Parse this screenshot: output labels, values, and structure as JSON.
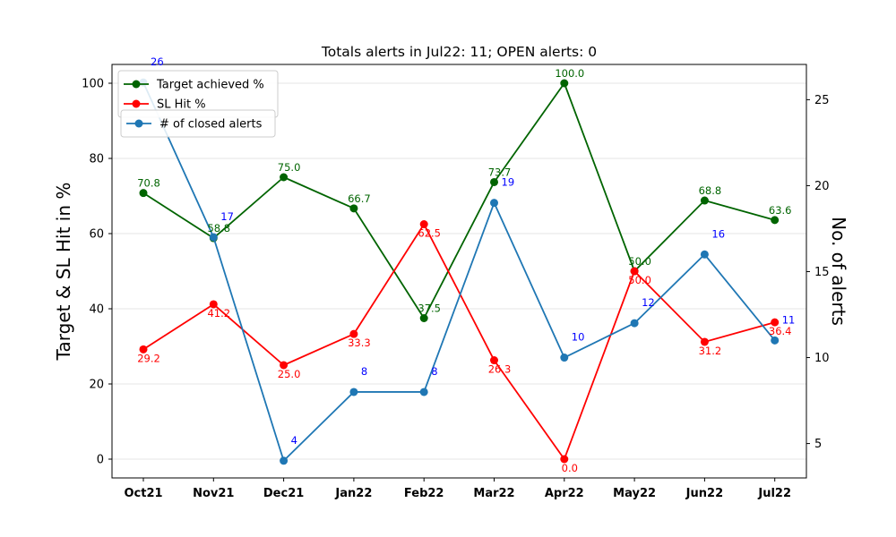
{
  "chart_data": {
    "type": "line",
    "title": "Totals alerts in Jul22: 11; OPEN alerts: 0",
    "categories": [
      "Oct21",
      "Nov21",
      "Dec21",
      "Jan22",
      "Feb22",
      "Mar22",
      "Apr22",
      "May22",
      "Jun22",
      "Jul22"
    ],
    "ylabel_left": "Target & SL Hit in %",
    "ylabel_right": "No. of alerts",
    "ylim_left": [
      -5,
      105
    ],
    "ylim_right": [
      3,
      27.05
    ],
    "yticks_left": [
      0,
      20,
      40,
      60,
      80,
      100
    ],
    "yticks_right": [
      5,
      10,
      15,
      20,
      25
    ],
    "grid": "horizontal (left axis)",
    "series": [
      {
        "name": "Target achieved %",
        "axis": "left",
        "color": "#006400",
        "values": [
          70.8,
          58.8,
          75.0,
          66.7,
          37.5,
          73.7,
          100.0,
          50.0,
          68.8,
          63.6
        ],
        "labels": [
          "70.8",
          "58.8",
          "75.0",
          "66.7",
          "37.5",
          "73.7",
          "100.0",
          "50.0",
          "68.8",
          "63.6"
        ]
      },
      {
        "name": "SL Hit %",
        "axis": "left",
        "color": "#ff0000",
        "values": [
          29.2,
          41.2,
          25.0,
          33.3,
          62.5,
          26.3,
          0.0,
          50.0,
          31.2,
          36.4
        ],
        "labels": [
          "29.2",
          "41.2",
          "25.0",
          "33.3",
          "62.5",
          "26.3",
          "0.0",
          "50.0",
          "31.2",
          "36.4"
        ]
      },
      {
        "name": "# of closed alerts",
        "axis": "right",
        "color": "#1f77b4",
        "label_color": "#0000ff",
        "values": [
          26,
          17,
          4,
          8,
          8,
          19,
          10,
          12,
          16,
          11
        ],
        "labels": [
          "26",
          "17",
          "4",
          "8",
          "8",
          "19",
          "10",
          "12",
          "16",
          "11"
        ]
      }
    ],
    "legends": [
      {
        "placement": "top-left",
        "entries": [
          "Target achieved %",
          "SL Hit %"
        ]
      },
      {
        "placement": "top-left (below)",
        "entries": [
          "# of closed alerts"
        ]
      }
    ]
  }
}
